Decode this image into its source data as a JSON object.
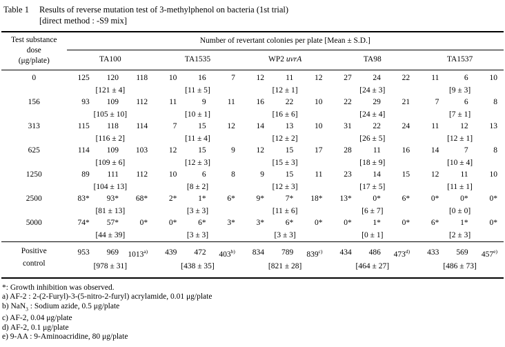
{
  "title": {
    "label": "Table 1",
    "line1": "Results of reverse mutation test of 3-methylphenol on bacteria (1st trial)",
    "line2": "[direct method : -S9 mix]"
  },
  "table": {
    "dose_header_lines": [
      "Test substance",
      "dose",
      "(μg/plate)"
    ],
    "span_header": "Number of revertant colonies per plate [Mean ± S.D.]",
    "strains": [
      "TA100",
      "TA1535",
      "WP2 *uvrA*",
      "TA98",
      "TA1537"
    ],
    "rows": [
      {
        "dose": "0",
        "groups": [
          {
            "values": [
              "125",
              "120",
              "118"
            ],
            "mean": "[121 ± 4]"
          },
          {
            "values": [
              "10",
              "16",
              "7"
            ],
            "mean": "[11 ± 5]"
          },
          {
            "values": [
              "12",
              "11",
              "12"
            ],
            "mean": "[12 ± 1]"
          },
          {
            "values": [
              "27",
              "24",
              "22"
            ],
            "mean": "[24 ± 3]"
          },
          {
            "values": [
              "11",
              "6",
              "10"
            ],
            "mean": "[9 ± 3]"
          }
        ]
      },
      {
        "dose": "156",
        "groups": [
          {
            "values": [
              "93",
              "109",
              "112"
            ],
            "mean": "[105 ± 10]"
          },
          {
            "values": [
              "11",
              "9",
              "11"
            ],
            "mean": "[10 ± 1]"
          },
          {
            "values": [
              "16",
              "22",
              "10"
            ],
            "mean": "[16 ± 6]"
          },
          {
            "values": [
              "22",
              "29",
              "21"
            ],
            "mean": "[24 ± 4]"
          },
          {
            "values": [
              "7",
              "6",
              "8"
            ],
            "mean": "[7 ± 1]"
          }
        ]
      },
      {
        "dose": "313",
        "groups": [
          {
            "values": [
              "115",
              "118",
              "114"
            ],
            "mean": "[116 ± 2]"
          },
          {
            "values": [
              "7",
              "15",
              "12"
            ],
            "mean": "[11 ± 4]"
          },
          {
            "values": [
              "14",
              "13",
              "10"
            ],
            "mean": "[12 ± 2]"
          },
          {
            "values": [
              "31",
              "22",
              "24"
            ],
            "mean": "[26 ± 5]"
          },
          {
            "values": [
              "11",
              "12",
              "13"
            ],
            "mean": "[12 ± 1]"
          }
        ]
      },
      {
        "dose": "625",
        "groups": [
          {
            "values": [
              "114",
              "109",
              "103"
            ],
            "mean": "[109 ± 6]"
          },
          {
            "values": [
              "12",
              "15",
              "9"
            ],
            "mean": "[12 ± 3]"
          },
          {
            "values": [
              "12",
              "15",
              "17"
            ],
            "mean": "[15 ± 3]"
          },
          {
            "values": [
              "28",
              "11",
              "16"
            ],
            "mean": "[18 ± 9]"
          },
          {
            "values": [
              "14",
              "7",
              "8"
            ],
            "mean": "[10 ± 4]"
          }
        ]
      },
      {
        "dose": "1250",
        "groups": [
          {
            "values": [
              "89",
              "111",
              "112"
            ],
            "mean": "[104 ± 13]"
          },
          {
            "values": [
              "10",
              "6",
              "8"
            ],
            "mean": "[8 ± 2]"
          },
          {
            "values": [
              "9",
              "15",
              "11"
            ],
            "mean": "[12 ± 3]"
          },
          {
            "values": [
              "23",
              "14",
              "15"
            ],
            "mean": "[17 ± 5]"
          },
          {
            "values": [
              "12",
              "11",
              "10"
            ],
            "mean": "[11 ± 1]"
          }
        ]
      },
      {
        "dose": "2500",
        "groups": [
          {
            "values": [
              "83*",
              "93*",
              "68*"
            ],
            "mean": "[81 ± 13]"
          },
          {
            "values": [
              "2*",
              "1*",
              "6*"
            ],
            "mean": "[3 ± 3]"
          },
          {
            "values": [
              "9*",
              "7*",
              "18*"
            ],
            "mean": "[11 ± 6]"
          },
          {
            "values": [
              "13*",
              "0*",
              "6*"
            ],
            "mean": "[6 ± 7]"
          },
          {
            "values": [
              "0*",
              "0*",
              "0*"
            ],
            "mean": "[0 ± 0]"
          }
        ]
      },
      {
        "dose": "5000",
        "groups": [
          {
            "values": [
              "74*",
              "57*",
              "0*"
            ],
            "mean": "[44 ± 39]"
          },
          {
            "values": [
              "0*",
              "6*",
              "3*"
            ],
            "mean": "[3 ± 3]"
          },
          {
            "values": [
              "3*",
              "6*",
              "0*"
            ],
            "mean": "[3 ± 3]"
          },
          {
            "values": [
              "0*",
              "1*",
              "0*"
            ],
            "mean": "[0 ± 1]"
          },
          {
            "values": [
              "6*",
              "1*",
              "0*"
            ],
            "mean": "[2 ± 3]"
          }
        ]
      }
    ],
    "positive_control": {
      "dose_lines": [
        "Positive",
        "control"
      ],
      "groups": [
        {
          "values": [
            "953",
            "969",
            "1013^a)^"
          ],
          "mean": "[978 ± 31]"
        },
        {
          "values": [
            "439",
            "472",
            "403^b)^"
          ],
          "mean": "[438 ± 35]"
        },
        {
          "values": [
            "834",
            "789",
            "839^c)^"
          ],
          "mean": "[821 ± 28]"
        },
        {
          "values": [
            "434",
            "486",
            "473^d)^"
          ],
          "mean": "[464 ± 27]"
        },
        {
          "values": [
            "433",
            "569",
            "457^e)^"
          ],
          "mean": "[486 ± 73]"
        }
      ]
    }
  },
  "footnotes": [
    "*: Growth inhibition was observed.",
    "a) AF-2 : 2-(2-Furyl)-3-(5-nitro-2-furyl) acrylamide, 0.01 μg/plate",
    "b) NaN~3~ : Sodium azide, 0.5 μg/plate",
    "c) AF-2, 0.04 μg/plate",
    "d) AF-2, 0.1 μg/plate",
    "e) 9-AA : 9-Aminoacridine, 80 μg/plate"
  ]
}
